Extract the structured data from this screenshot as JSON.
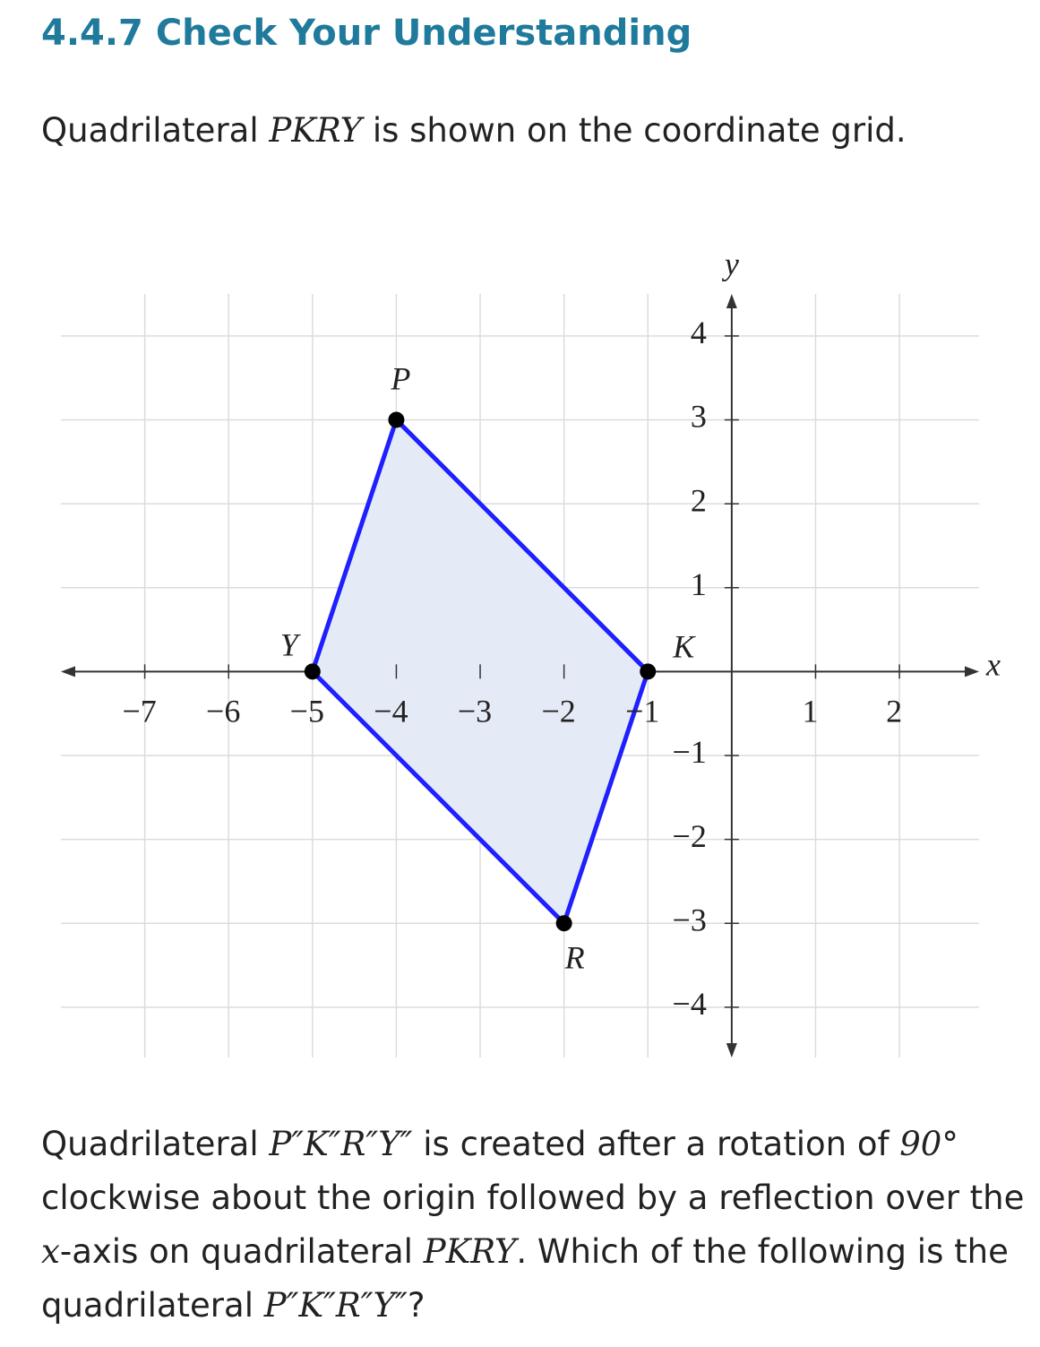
{
  "title": "4.4.7 Check Your Understanding",
  "intro": [
    "Quadrilateral ",
    "PKRY",
    " is shown on the coordinate grid."
  ],
  "chart_data": {
    "type": "polygon",
    "points": [
      {
        "name": "P",
        "x": -4,
        "y": 3
      },
      {
        "name": "K",
        "x": -1,
        "y": 0
      },
      {
        "name": "R",
        "x": -2,
        "y": -3
      },
      {
        "name": "Y",
        "x": -5,
        "y": 0
      }
    ],
    "fill": "#e5ebf6",
    "color": "#1f1fff",
    "point_color": "#000000",
    "x_label": "x",
    "y_label": "y",
    "xlim": [
      -8,
      2.95
    ],
    "ylim": [
      -4.6,
      4.5
    ],
    "xticks": [
      {
        "value": -7,
        "label": "−7"
      },
      {
        "value": -6,
        "label": "−6"
      },
      {
        "value": -5,
        "label": "−5"
      },
      {
        "value": -4,
        "label": "−4"
      },
      {
        "value": -3,
        "label": "−3"
      },
      {
        "value": -2,
        "label": "−2"
      },
      {
        "value": -1,
        "label": "−1"
      },
      1,
      2
    ],
    "yticks": [
      {
        "value": -4,
        "label": "−4"
      },
      {
        "value": -3,
        "label": "−3"
      },
      {
        "value": -2,
        "label": "−2"
      },
      {
        "value": -1,
        "label": "−1"
      },
      1,
      2,
      3,
      4
    ],
    "grid": true
  },
  "question": [
    "Quadrilateral ",
    "P″K″R″Y″",
    " is created after a rotation of ",
    "90°",
    " clockwise about the origin followed by a reflection over the ",
    "x",
    "-axis on quadrilateral ",
    "PKRY",
    ". Which of the following is the quadrilateral ",
    "P″K″R″Y″",
    "?"
  ]
}
